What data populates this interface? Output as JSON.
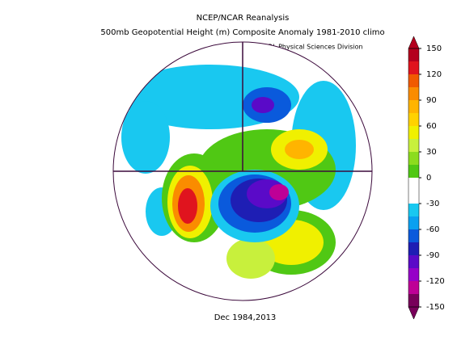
{
  "header": {
    "title": "NCEP/NCAR Reanalysis",
    "subtitle": "500mb Geopotential Height (m) Composite Anomaly 1981-2010 climo",
    "credit": "NOAA/ESRL Physical Sciences Division"
  },
  "footer": {
    "date": "Dec 1984,2013"
  },
  "colorbar": {
    "clim": [
      -150,
      150
    ],
    "ticks": [
      150,
      120,
      90,
      60,
      30,
      0,
      -30,
      -60,
      -90,
      -120,
      -150
    ],
    "colors": [
      "#b4001e",
      "#e0141e",
      "#f05a00",
      "#fa8c00",
      "#ffb400",
      "#ffd200",
      "#f0f000",
      "#c8f03c",
      "#8cdc1e",
      "#50c814",
      "#ffffff",
      "#ffffff",
      "#19c8f0",
      "#0aa0f0",
      "#0a5adc",
      "#1e1eb4",
      "#5a0ac8",
      "#9600c8",
      "#be0096",
      "#78005a"
    ]
  }
}
